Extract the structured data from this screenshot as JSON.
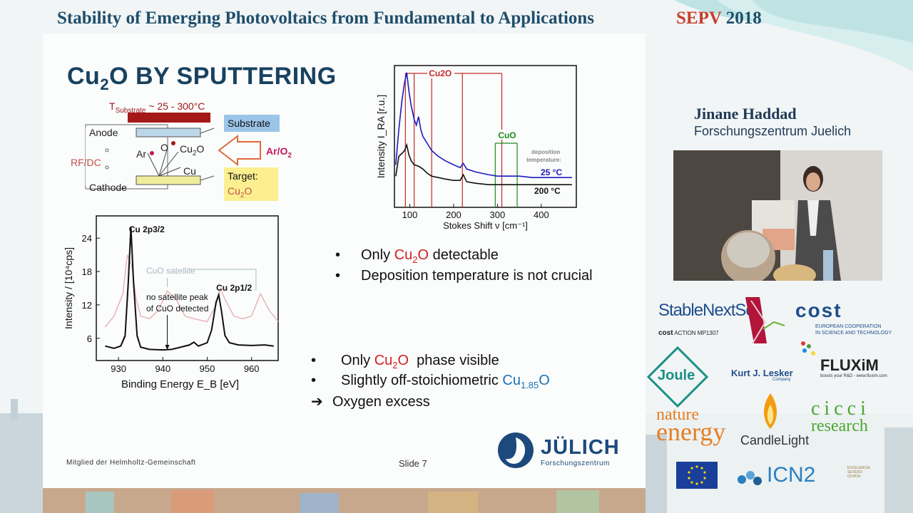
{
  "header": {
    "conference_title": "Stability of Emerging Photovoltaics from Fundamental to Applications",
    "conference_name": "SEPV",
    "conference_year": "2018"
  },
  "speaker": {
    "name": "Jinane Haddad",
    "affiliation": "Forschungszentrum Juelich"
  },
  "slide": {
    "title_a": "Cu",
    "title_sub": "2",
    "title_b": "O BY SPUTTERING",
    "footer_left": "Mitglied der Helmholtz-Gemeinschaft",
    "footer_center": "Slide 7",
    "julich_name": "JÜLICH",
    "julich_sub": "Forschungszentrum",
    "schematic": {
      "t_substrate": "T",
      "t_substrate_sub": "Substrate",
      "t_range": " ~ 25 - 300°C",
      "anode": "Anode",
      "cathode": "Cathode",
      "rf_dc": "RF/DC",
      "substrate": "Substrate",
      "target_line1": "Target:",
      "target_line2": "Cu",
      "target_line2_sub": "2",
      "target_line2_end": "O",
      "ar_o2": "Ar/O",
      "ar_o2_sub": "2",
      "ar": "Ar",
      "o": "O",
      "cu2o": "Cu",
      "cu2o_sub": "2",
      "cu2o_end": "O",
      "cu": "Cu"
    },
    "bullets_raman": [
      {
        "pre": "Only ",
        "hl": "Cu",
        "hl_sub": "2",
        "hl_end": "O",
        "post": " detectable"
      },
      {
        "pre": "Deposition temperature is not crucial"
      }
    ],
    "bullets_xps": [
      {
        "pre": "Only ",
        "hl": "Cu",
        "hl_sub": "2",
        "hl_end": "O",
        "post": "  phase visible"
      },
      {
        "pre": "Slightly off-stoichiometric ",
        "hl": "Cu",
        "hl_sub": "1.85",
        "hl_end": "O"
      },
      {
        "pre": "Oxygen excess"
      }
    ],
    "bullet_symbol": "•",
    "arrow_symbol": "➔"
  },
  "chart_data": [
    {
      "type": "line",
      "xlabel": "Stokes Shift ν [cm⁻¹]",
      "ylabel": "Intensity I_RA [r.u.]",
      "xlim": [
        65,
        480
      ],
      "x_ticks": [
        100,
        200,
        300,
        400
      ],
      "grid": false,
      "annotations": [
        "Cu2O",
        "CuO",
        "deposition temperature:"
      ],
      "reference_lines": {
        "Cu2O": [
          90,
          110,
          150,
          220,
          310
        ],
        "CuO": [
          295,
          345
        ],
        "Cu2O_color": "#c62828",
        "CuO_color": "#1b8a1b"
      },
      "series": [
        {
          "name": "25 °C",
          "color": "#1b1bbd",
          "x": [
            68,
            75,
            82,
            88,
            93,
            98,
            103,
            110,
            115,
            120,
            125,
            130,
            140,
            150,
            165,
            180,
            200,
            215,
            222,
            230,
            250,
            280,
            300,
            320,
            350,
            380,
            420,
            470
          ],
          "y": [
            0.3,
            0.55,
            0.75,
            0.88,
            0.95,
            0.82,
            0.72,
            0.62,
            0.58,
            0.64,
            0.55,
            0.5,
            0.45,
            0.4,
            0.36,
            0.33,
            0.3,
            0.28,
            0.31,
            0.27,
            0.25,
            0.23,
            0.22,
            0.22,
            0.22,
            0.21,
            0.21,
            0.21
          ]
        },
        {
          "name": "200 °C",
          "color": "#111111",
          "x": [
            68,
            75,
            82,
            88,
            93,
            98,
            103,
            110,
            120,
            130,
            140,
            150,
            165,
            180,
            200,
            215,
            222,
            230,
            250,
            280,
            300,
            320,
            350,
            380,
            420,
            470
          ],
          "y": [
            0.22,
            0.36,
            0.38,
            0.4,
            0.44,
            0.37,
            0.33,
            0.3,
            0.29,
            0.27,
            0.24,
            0.22,
            0.21,
            0.2,
            0.19,
            0.19,
            0.23,
            0.18,
            0.17,
            0.16,
            0.16,
            0.16,
            0.16,
            0.16,
            0.16,
            0.16
          ]
        }
      ]
    },
    {
      "type": "line",
      "xlabel": "Binding Energy E_B [eV]",
      "ylabel": "Intensity / [10⁴cps]",
      "xlim": [
        925,
        966
      ],
      "ylim": [
        2,
        28
      ],
      "x_ticks": [
        930,
        940,
        950,
        960
      ],
      "y_ticks": [
        6,
        12,
        18,
        24
      ],
      "grid": false,
      "annotations": [
        "Cu 2p3/2",
        "Cu 2p1/2",
        "CuO satellite",
        "no satellite peak",
        "of CuO detected"
      ],
      "series": [
        {
          "name": "measured",
          "color": "#111111",
          "x": [
            927,
            929,
            930.5,
            931.5,
            932.2,
            932.8,
            933.4,
            934.2,
            935,
            937,
            940,
            942,
            944,
            946,
            947,
            948,
            950,
            951,
            952,
            952.6,
            953.2,
            954,
            955,
            957,
            960,
            963,
            965
          ],
          "y": [
            4.6,
            4.2,
            4.6,
            6.5,
            16,
            26,
            16,
            6.5,
            4.4,
            4.0,
            3.9,
            4.0,
            4.4,
            4.8,
            5.3,
            4.6,
            5.2,
            7.5,
            12.5,
            13.8,
            11,
            6.5,
            5.2,
            4.8,
            4.7,
            4.8,
            4.6
          ]
        },
        {
          "name": "fit",
          "color": "#b02020",
          "x": [
            930.5,
            931.5,
            932.2,
            932.8,
            933.4,
            934.2,
            935
          ],
          "y": [
            4.5,
            6.3,
            15.5,
            25.5,
            15.8,
            6.3,
            4.4
          ]
        },
        {
          "name": "CuO reference",
          "color": "#e8b4b4",
          "x": [
            927,
            929,
            931,
            932,
            933,
            934,
            935,
            937,
            939,
            941,
            943,
            945,
            947,
            950,
            952,
            953,
            954,
            956,
            958,
            960,
            962,
            964,
            966
          ],
          "y": [
            8,
            10,
            14,
            21,
            19,
            13,
            10,
            9.5,
            11,
            14.5,
            13,
            10,
            9.5,
            9,
            12,
            15,
            13,
            10,
            9.5,
            10,
            14,
            11,
            9
          ]
        }
      ]
    }
  ],
  "sponsors": [
    "StableNextSol",
    "ACTION MP1307",
    "cost",
    "EUROPEAN COOPERATION",
    "IN SCIENCE AND TECHNOLOGY",
    "FLUXiM",
    "boosts your R&D - www.fluxim.com",
    "Joule",
    "Kurt J. Lesker",
    "Company",
    "nature",
    "energy",
    "CandleLight",
    "cicci",
    "research",
    "ICN2",
    "EXCELENCIA",
    "SEVERO",
    "OCHOA"
  ]
}
